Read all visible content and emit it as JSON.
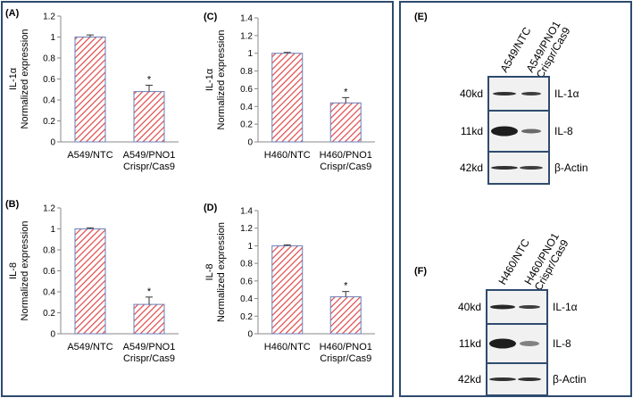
{
  "chart_data": [
    {
      "panel": "(A)",
      "type": "bar",
      "ylabel_main": "IL-1α",
      "ylabel_sub": "Normalized expression",
      "categories": [
        "A549/NTC",
        "A549/PNO1\nCrispr/Cas9"
      ],
      "values": [
        1.0,
        0.48
      ],
      "errors": [
        0.02,
        0.06
      ],
      "significance": [
        "",
        "*"
      ],
      "ylim": [
        0,
        1.2
      ],
      "yticks": [
        0,
        0.2,
        0.4,
        0.6,
        0.8,
        1,
        1.2
      ]
    },
    {
      "panel": "(B)",
      "type": "bar",
      "ylabel_main": "IL-8",
      "ylabel_sub": "Normalized expression",
      "categories": [
        "A549/NTC",
        "A549/PNO1\nCrispr/Cas9"
      ],
      "values": [
        1.0,
        0.28
      ],
      "errors": [
        0.01,
        0.07
      ],
      "significance": [
        "",
        "*"
      ],
      "ylim": [
        0,
        1.2
      ],
      "yticks": [
        0,
        0.2,
        0.4,
        0.6,
        0.8,
        1,
        1.2
      ]
    },
    {
      "panel": "(C)",
      "type": "bar",
      "ylabel_main": "IL-1α",
      "ylabel_sub": "Normalized expression",
      "categories": [
        "H460/NTC",
        "H460/PNO1\nCrispr/Cas9"
      ],
      "values": [
        1.0,
        0.44
      ],
      "errors": [
        0.01,
        0.06
      ],
      "significance": [
        "",
        "*"
      ],
      "ylim": [
        0,
        1.4
      ],
      "yticks": [
        0,
        0.2,
        0.4,
        0.6,
        0.8,
        1,
        1.2,
        1.4
      ]
    },
    {
      "panel": "(D)",
      "type": "bar",
      "ylabel_main": "IL-8",
      "ylabel_sub": "Normalized expression",
      "categories": [
        "H460/NTC",
        "H460/PNO1\nCrispr/Cas9"
      ],
      "values": [
        1.0,
        0.42
      ],
      "errors": [
        0.01,
        0.06
      ],
      "significance": [
        "",
        "*"
      ],
      "ylim": [
        0,
        1.4
      ],
      "yticks": [
        0,
        0.2,
        0.4,
        0.6,
        0.8,
        1,
        1.2,
        1.4
      ]
    }
  ],
  "blots": [
    {
      "panel": "(E)",
      "lanes": [
        "A549/NTC",
        "A549/PNO1\nCrispr/Cas9"
      ],
      "rows": [
        {
          "weight": "40kd",
          "protein": "IL-1α"
        },
        {
          "weight": "11kd",
          "protein": "IL-8"
        },
        {
          "weight": "42kd",
          "protein": "β-Actin"
        }
      ]
    },
    {
      "panel": "(F)",
      "lanes": [
        "H460/NTC",
        "H460/PNO1\nCrispr/Cas9"
      ],
      "rows": [
        {
          "weight": "40kd",
          "protein": "IL-1α"
        },
        {
          "weight": "11kd",
          "protein": "IL-8"
        },
        {
          "weight": "42kd",
          "protein": "β-Actin"
        }
      ]
    }
  ],
  "colors": {
    "frame": "#2f4b6e",
    "bar_fill": "#ffffff",
    "bar_hatch": "#e04848",
    "bar_edge": "#6a7fb8",
    "axis": "#888888"
  }
}
